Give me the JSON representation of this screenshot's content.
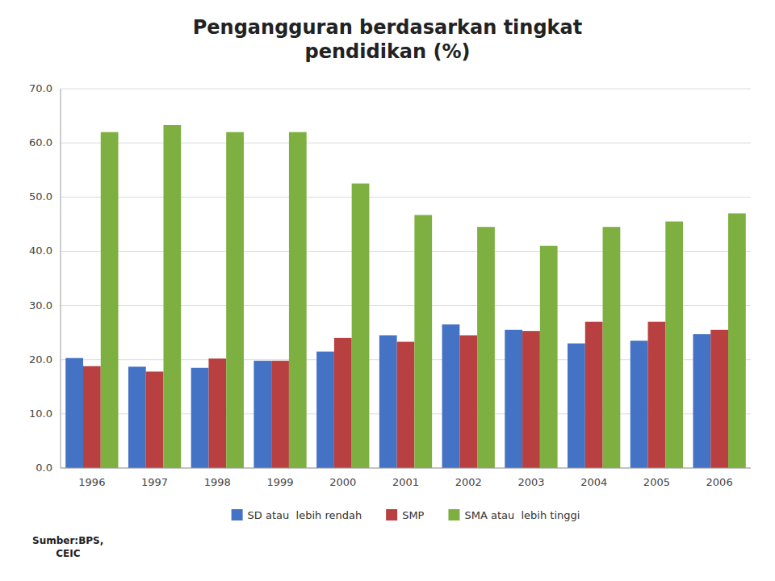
{
  "chart_data": {
    "type": "bar",
    "title": "Pengangguran berdasarkan tingkat\npendidikan (%)",
    "categories": [
      "1996",
      "1997",
      "1998",
      "1999",
      "2000",
      "2001",
      "2002",
      "2003",
      "2004",
      "2005",
      "2006"
    ],
    "series": [
      {
        "name": "SD atau  lebih rendah",
        "color": "#4472C4",
        "values": [
          20.3,
          18.7,
          18.5,
          19.8,
          21.5,
          24.5,
          26.5,
          25.5,
          23.0,
          23.5,
          24.7
        ]
      },
      {
        "name": "SMP",
        "color": "#B94040",
        "values": [
          18.8,
          17.8,
          20.2,
          19.8,
          24.0,
          23.3,
          24.5,
          25.3,
          27.0,
          27.0,
          25.5
        ]
      },
      {
        "name": "SMA atau  lebih tinggi",
        "color": "#7DB040",
        "values": [
          62.0,
          63.3,
          62.0,
          62.0,
          52.5,
          46.7,
          44.5,
          41.0,
          44.5,
          45.5,
          47.0
        ]
      }
    ],
    "ylim": [
      0,
      70
    ],
    "yticks": [
      {
        "value": 0,
        "label": "0.0"
      },
      {
        "value": 10,
        "label": "10.0"
      },
      {
        "value": 20,
        "label": "20.0"
      },
      {
        "value": 30,
        "label": "30.0"
      },
      {
        "value": 40,
        "label": "40.0"
      },
      {
        "value": 50,
        "label": "50.0"
      },
      {
        "value": 60,
        "label": "60.0"
      },
      {
        "value": 70,
        "label": "70.0"
      }
    ],
    "grid": true,
    "legend": "bottom",
    "annotations": [
      "Sumber:BPS,\n       CEIC"
    ]
  }
}
